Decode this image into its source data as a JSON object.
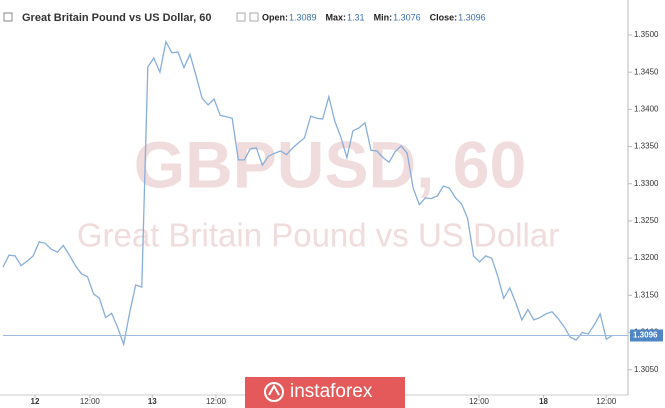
{
  "chart_data": {
    "type": "line",
    "title": "Great Britain Pound vs US Dollar, 60",
    "ohlc": [
      {
        "label": "Open:",
        "value": 1.3089
      },
      {
        "label": "Max:",
        "value": 1.31
      },
      {
        "label": "Min:",
        "value": 1.3076
      },
      {
        "label": "Close:",
        "value": 1.3096
      }
    ],
    "watermark": [
      "GBPUSD, 60",
      "Great Britain Pound vs US Dollar"
    ],
    "banner": "instaforex",
    "series": [
      {
        "name": "GBPUSD",
        "color": "#88aedb",
        "values": [
          1.3188,
          1.3204,
          1.3203,
          1.319,
          1.3196,
          1.3203,
          1.3222,
          1.322,
          1.3212,
          1.3208,
          1.3217,
          1.3204,
          1.319,
          1.3179,
          1.3175,
          1.3152,
          1.3146,
          1.312,
          1.3126,
          1.3107,
          1.3084,
          1.3127,
          1.3164,
          1.3161,
          1.3457,
          1.3469,
          1.345,
          1.3491,
          1.3476,
          1.3477,
          1.3456,
          1.3474,
          1.3445,
          1.3415,
          1.3406,
          1.3414,
          1.3392,
          1.339,
          1.3388,
          1.3332,
          1.3332,
          1.3347,
          1.3348,
          1.3325,
          1.3337,
          1.3341,
          1.3344,
          1.3339,
          1.3348,
          1.3355,
          1.3362,
          1.3391,
          1.3388,
          1.3387,
          1.3417,
          1.3384,
          1.3363,
          1.3335,
          1.3371,
          1.3375,
          1.3382,
          1.3345,
          1.3344,
          1.3335,
          1.3329,
          1.3343,
          1.3351,
          1.3341,
          1.3294,
          1.3272,
          1.3281,
          1.328,
          1.3284,
          1.3297,
          1.3294,
          1.3281,
          1.3273,
          1.3254,
          1.3203,
          1.3195,
          1.3203,
          1.32,
          1.3176,
          1.3146,
          1.316,
          1.314,
          1.3117,
          1.3131,
          1.3117,
          1.312,
          1.3125,
          1.3128,
          1.3119,
          1.3108,
          1.3094,
          1.309,
          1.31,
          1.3098,
          1.311,
          1.3125,
          1.3091,
          1.3096
        ]
      }
    ],
    "last_price": 1.3096,
    "xlim": [
      0,
      103.6
    ],
    "xticks": [
      {
        "value": 5.3,
        "label": "12"
      },
      {
        "value": 14.4,
        "label": "12:00"
      },
      {
        "value": 24.75,
        "label": "13"
      },
      {
        "value": 35.3,
        "label": "12:00"
      },
      {
        "value": 78.9,
        "label": "12:00"
      },
      {
        "value": 89.6,
        "label": "18"
      },
      {
        "value": 100,
        "label": "12:00"
      }
    ],
    "ylim": [
      1.3016,
      1.3543
    ],
    "yticks": [
      {
        "value": 1.305,
        "label": "1.3050"
      },
      {
        "value": 1.31,
        "label": "1.3100"
      },
      {
        "value": 1.315,
        "label": "1.3150"
      },
      {
        "value": 1.32,
        "label": "1.3200"
      },
      {
        "value": 1.325,
        "label": "1.3250"
      },
      {
        "value": 1.33,
        "label": "1.3300"
      },
      {
        "value": 1.335,
        "label": "1.3350"
      },
      {
        "value": 1.34,
        "label": "1.3400"
      },
      {
        "value": 1.345,
        "label": "1.3450"
      },
      {
        "value": 1.35,
        "label": "1.3500"
      }
    ],
    "grid": false
  }
}
